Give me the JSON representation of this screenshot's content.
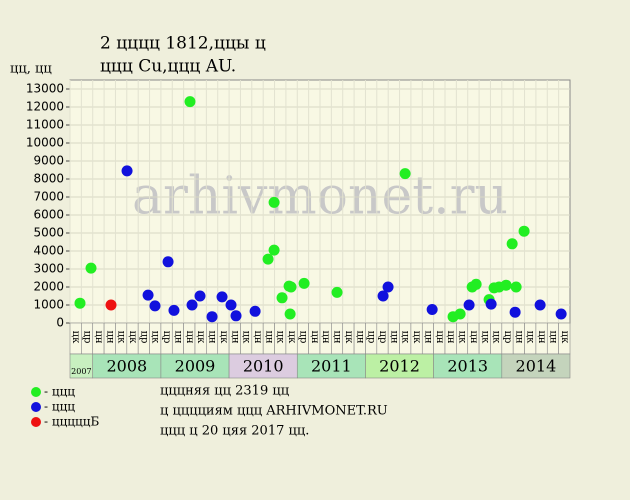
{
  "chart_data": {
    "type": "scatter",
    "title": "2 цццц 1812,ццы ц",
    "subtitle": "ццц Cu,ццц AU.",
    "y_label": "цц, цц",
    "watermark": "arhivmonet.ru",
    "ylim": [
      0,
      13500
    ],
    "yticks": [
      0,
      1000,
      2000,
      3000,
      4000,
      5000,
      6000,
      7000,
      8000,
      9000,
      10000,
      11000,
      12000,
      13000
    ],
    "xlim": [
      0,
      44
    ],
    "grid": true,
    "groups": [
      {
        "name": "2007",
        "color": "#c8f0c0",
        "categories": [
          "цк",
          "цр"
        ]
      },
      {
        "name": "2008",
        "color": "#a8e4b8",
        "categories": [
          "цн",
          "цн",
          "цк",
          "цк",
          "цр",
          "цк"
        ]
      },
      {
        "name": "2009",
        "color": "#a8e4b8",
        "categories": [
          "цр",
          "цн",
          "цн",
          "цк",
          "цн",
          "цк"
        ]
      },
      {
        "name": "2010",
        "color": "#dccce0",
        "categories": [
          "цн",
          "цк",
          "цн",
          "цн",
          "цк",
          "цк"
        ]
      },
      {
        "name": "2011",
        "color": "#a8e4b8",
        "categories": [
          "цр",
          "цн",
          "цн",
          "цн",
          "цк",
          "цн"
        ]
      },
      {
        "name": "2012",
        "color": "#bcf0a4",
        "categories": [
          "цр",
          "цр",
          "цн",
          "цк",
          "цк",
          "цн"
        ]
      },
      {
        "name": "2013",
        "color": "#a8e4b8",
        "categories": [
          "цн",
          "цн",
          "цк",
          "цн",
          "цк",
          "цк"
        ]
      },
      {
        "name": "2014",
        "color": "#c4d4bc",
        "categories": [
          "цр",
          "цн",
          "цк",
          "цн",
          "цн",
          "цк"
        ]
      }
    ],
    "series": [
      {
        "name": "- ццц",
        "color": "#22ee22",
        "x": [
          0.88,
          1.85,
          10.56,
          17.96,
          17.96,
          17.43,
          18.66,
          19.28,
          19.45,
          19.37,
          20.6,
          23.5,
          29.49,
          33.71,
          34.33,
          35.39,
          35.74,
          36.88,
          37.32,
          37.76,
          38.38,
          38.91,
          39.26,
          39.96
        ],
        "values": [
          1100,
          3050,
          12300,
          6700,
          4050,
          3550,
          1400,
          2050,
          2000,
          500,
          2200,
          1700,
          8300,
          350,
          500,
          2000,
          2150,
          1300,
          1950,
          2000,
          2100,
          4400,
          2000,
          5100
        ]
      },
      {
        "name": "- ццц",
        "color": "#1111dd",
        "x": [
          5.02,
          6.87,
          7.48,
          8.63,
          9.15,
          10.74,
          11.44,
          12.5,
          13.38,
          14.17,
          14.61,
          16.29,
          27.55,
          27.99,
          31.87,
          35.12,
          37.06,
          39.17,
          41.37,
          43.22
        ],
        "values": [
          8450,
          1550,
          950,
          3400,
          700,
          1000,
          1500,
          350,
          1450,
          1000,
          400,
          650,
          1500,
          2000,
          750,
          1000,
          1050,
          600,
          1000,
          500
        ]
      },
      {
        "name": "- цццццБ",
        "color": "#ee1111",
        "x": [
          3.61
        ],
        "values": [
          1000
        ]
      }
    ],
    "notes": [
      "цццняя цц 2319 цц",
      "ц цццциям ццц ARHIVMONET.RU",
      "ццц ц 20 цяя 2017 цц."
    ]
  }
}
